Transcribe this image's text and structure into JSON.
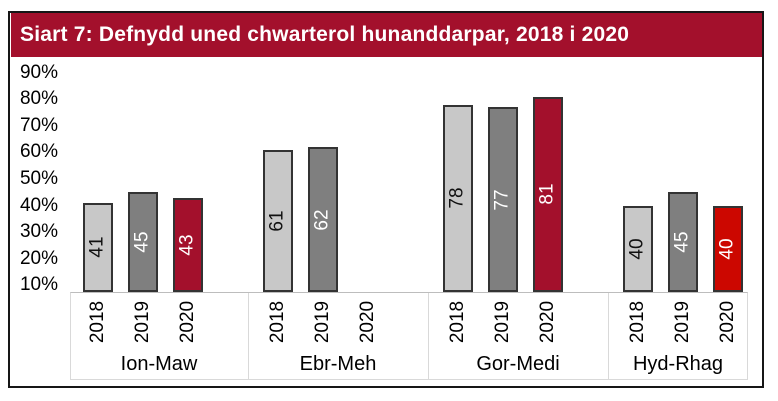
{
  "panel": {
    "title": "Siart 7: Defnydd uned chwarterol hunanddarpar, 2018 i 2020",
    "title_bg": "#A3102C",
    "title_fg": "#FFFFFF",
    "frame_border": "#161616"
  },
  "chart_data": {
    "type": "bar",
    "title": "Siart 7: Defnydd uned chwarterol hunanddarpar, 2018 i 2020",
    "categories": [
      "Ion-Maw",
      "Ebr-Meh",
      "Gor-Medi",
      "Hyd-Rhag"
    ],
    "series": [
      {
        "name": "2018",
        "values": [
          41,
          61,
          78,
          40
        ],
        "color": "#C8C8C8",
        "label_color": "#111111"
      },
      {
        "name": "2019",
        "values": [
          45,
          62,
          77,
          45
        ],
        "color": "#7F7F7F",
        "label_color": "#FFFFFF"
      },
      {
        "name": "2020",
        "values": [
          43,
          null,
          81,
          40
        ],
        "color": "#A3102C",
        "label_color": "#FFFFFF"
      }
    ],
    "color_overrides": [
      {
        "category": "Hyd-Rhag",
        "series": "2020",
        "color": "#CC0700"
      }
    ],
    "y_axis": {
      "unit": "%",
      "min": 10,
      "max": 90,
      "tick_step": 10,
      "tick_labels": [
        "90%",
        "80%",
        "70%",
        "60%",
        "50%",
        "40%",
        "30%",
        "20%",
        "10%"
      ],
      "gridlines": false
    },
    "bar_outline": "#333333",
    "value_labels": "inside-bar-rotated",
    "legend": "none",
    "x_axis_note": "each category shows rotated year labels 2018, 2019, 2020; 2020 bar missing in Ebr-Meh"
  }
}
